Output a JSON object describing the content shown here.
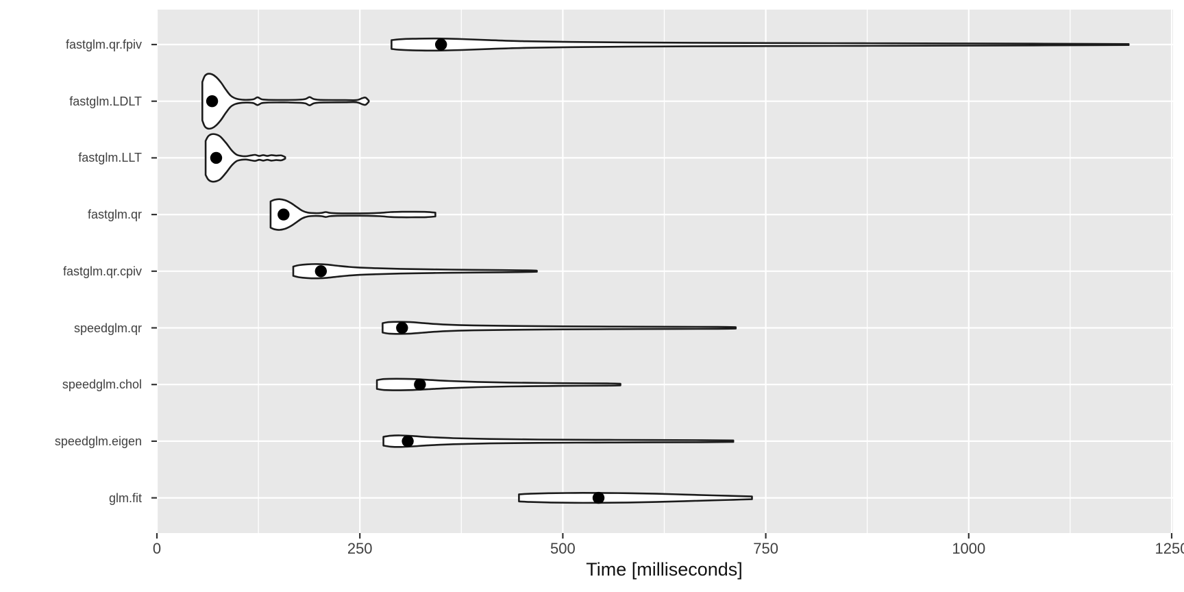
{
  "chart_data": {
    "type": "violin",
    "title": "",
    "xlabel": "Time [milliseconds]",
    "ylabel": "",
    "xlim": [
      0,
      1250
    ],
    "x_ticks": [
      0,
      250,
      500,
      750,
      1000,
      1250
    ],
    "x_minor_ticks": [
      125,
      375,
      625,
      875,
      1125
    ],
    "grid": true,
    "legend": "none",
    "orientation": "horizontal",
    "colors": {
      "panel_background": "#e8e8e8",
      "grid": "#ffffff",
      "violin_fill": "#ffffff",
      "violin_stroke": "#1c1c1c",
      "median_point": "#000000",
      "axis_tick": "#333333",
      "axis_text": "#404040",
      "axis_title": "#111111"
    },
    "series": [
      {
        "label": "fastglm.qr.fpiv",
        "median": 350,
        "min": 289,
        "max": 1197,
        "profile": [
          [
            289,
            0.16
          ],
          [
            298,
            0.19
          ],
          [
            315,
            0.21
          ],
          [
            345,
            0.22
          ],
          [
            375,
            0.2
          ],
          [
            410,
            0.16
          ],
          [
            455,
            0.12
          ],
          [
            510,
            0.095
          ],
          [
            580,
            0.078
          ],
          [
            660,
            0.065
          ],
          [
            760,
            0.055
          ],
          [
            870,
            0.047
          ],
          [
            980,
            0.04
          ],
          [
            1080,
            0.033
          ],
          [
            1150,
            0.026
          ],
          [
            1197,
            0.018
          ]
        ]
      },
      {
        "label": "fastglm.LDLT",
        "median": 68,
        "min": 56,
        "max": 261,
        "profile": [
          [
            56,
            0.7
          ],
          [
            59,
            0.92
          ],
          [
            63,
            1.0
          ],
          [
            68,
            0.98
          ],
          [
            73,
            0.88
          ],
          [
            79,
            0.68
          ],
          [
            85,
            0.42
          ],
          [
            91,
            0.2
          ],
          [
            97,
            0.1
          ],
          [
            105,
            0.055
          ],
          [
            112,
            0.05
          ],
          [
            119,
            0.07
          ],
          [
            124,
            0.14
          ],
          [
            129,
            0.07
          ],
          [
            136,
            0.05
          ],
          [
            148,
            0.045
          ],
          [
            162,
            0.045
          ],
          [
            175,
            0.055
          ],
          [
            183,
            0.08
          ],
          [
            188,
            0.15
          ],
          [
            193,
            0.08
          ],
          [
            200,
            0.05
          ],
          [
            215,
            0.042
          ],
          [
            232,
            0.04
          ],
          [
            246,
            0.04
          ],
          [
            253,
            0.11
          ],
          [
            257,
            0.13
          ],
          [
            261,
            0.02
          ]
        ]
      },
      {
        "label": "fastglm.LLT",
        "median": 73,
        "min": 60,
        "max": 158,
        "profile": [
          [
            60,
            0.62
          ],
          [
            63,
            0.78
          ],
          [
            67,
            0.86
          ],
          [
            72,
            0.86
          ],
          [
            78,
            0.78
          ],
          [
            85,
            0.55
          ],
          [
            92,
            0.28
          ],
          [
            98,
            0.12
          ],
          [
            104,
            0.07
          ],
          [
            110,
            0.06
          ],
          [
            116,
            0.09
          ],
          [
            121,
            0.11
          ],
          [
            126,
            0.07
          ],
          [
            131,
            0.1
          ],
          [
            136,
            0.07
          ],
          [
            141,
            0.1
          ],
          [
            147,
            0.08
          ],
          [
            153,
            0.09
          ],
          [
            158,
            0.03
          ]
        ]
      },
      {
        "label": "fastglm.qr",
        "median": 156,
        "min": 140,
        "max": 343,
        "profile": [
          [
            140,
            0.48
          ],
          [
            145,
            0.54
          ],
          [
            151,
            0.56
          ],
          [
            158,
            0.52
          ],
          [
            165,
            0.42
          ],
          [
            172,
            0.28
          ],
          [
            179,
            0.14
          ],
          [
            186,
            0.07
          ],
          [
            195,
            0.05
          ],
          [
            203,
            0.06
          ],
          [
            208,
            0.09
          ],
          [
            213,
            0.06
          ],
          [
            222,
            0.045
          ],
          [
            240,
            0.042
          ],
          [
            260,
            0.045
          ],
          [
            275,
            0.06
          ],
          [
            288,
            0.09
          ],
          [
            302,
            0.1
          ],
          [
            318,
            0.1
          ],
          [
            332,
            0.095
          ],
          [
            343,
            0.07
          ]
        ]
      },
      {
        "label": "fastglm.qr.cpiv",
        "median": 202,
        "min": 168,
        "max": 468,
        "profile": [
          [
            168,
            0.17
          ],
          [
            175,
            0.22
          ],
          [
            185,
            0.25
          ],
          [
            198,
            0.26
          ],
          [
            210,
            0.24
          ],
          [
            225,
            0.19
          ],
          [
            245,
            0.14
          ],
          [
            270,
            0.11
          ],
          [
            300,
            0.085
          ],
          [
            340,
            0.065
          ],
          [
            385,
            0.05
          ],
          [
            425,
            0.04
          ],
          [
            455,
            0.03
          ],
          [
            468,
            0.02
          ]
        ]
      },
      {
        "label": "speedglm.qr",
        "median": 302,
        "min": 278,
        "max": 713,
        "profile": [
          [
            278,
            0.17
          ],
          [
            286,
            0.21
          ],
          [
            298,
            0.22
          ],
          [
            312,
            0.21
          ],
          [
            330,
            0.17
          ],
          [
            355,
            0.12
          ],
          [
            390,
            0.09
          ],
          [
            440,
            0.07
          ],
          [
            500,
            0.055
          ],
          [
            570,
            0.045
          ],
          [
            640,
            0.04
          ],
          [
            690,
            0.035
          ],
          [
            713,
            0.025
          ]
        ]
      },
      {
        "label": "speedglm.chol",
        "median": 324,
        "min": 271,
        "max": 571,
        "profile": [
          [
            271,
            0.16
          ],
          [
            280,
            0.2
          ],
          [
            295,
            0.21
          ],
          [
            315,
            0.2
          ],
          [
            335,
            0.17
          ],
          [
            360,
            0.13
          ],
          [
            395,
            0.095
          ],
          [
            435,
            0.07
          ],
          [
            480,
            0.055
          ],
          [
            525,
            0.045
          ],
          [
            555,
            0.04
          ],
          [
            571,
            0.03
          ]
        ]
      },
      {
        "label": "speedglm.eigen",
        "median": 309,
        "min": 279,
        "max": 710,
        "profile": [
          [
            279,
            0.16
          ],
          [
            288,
            0.2
          ],
          [
            300,
            0.21
          ],
          [
            315,
            0.19
          ],
          [
            335,
            0.15
          ],
          [
            365,
            0.11
          ],
          [
            410,
            0.08
          ],
          [
            470,
            0.06
          ],
          [
            540,
            0.05
          ],
          [
            610,
            0.042
          ],
          [
            670,
            0.038
          ],
          [
            710,
            0.028
          ]
        ]
      },
      {
        "label": "glm.fit",
        "median": 544,
        "min": 446,
        "max": 733,
        "profile": [
          [
            446,
            0.13
          ],
          [
            460,
            0.15
          ],
          [
            485,
            0.17
          ],
          [
            515,
            0.18
          ],
          [
            545,
            0.18
          ],
          [
            580,
            0.17
          ],
          [
            615,
            0.15
          ],
          [
            650,
            0.12
          ],
          [
            685,
            0.09
          ],
          [
            710,
            0.07
          ],
          [
            733,
            0.05
          ]
        ]
      }
    ]
  }
}
